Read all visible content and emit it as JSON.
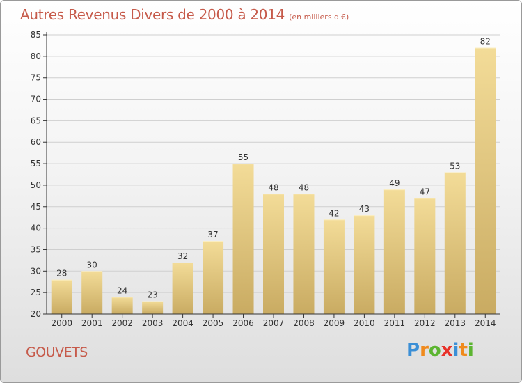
{
  "title": "Autres Revenus Divers de 2000 à 2014",
  "unit": "(en milliers d'€)",
  "place": "GOUVETS",
  "logo": {
    "text": "Proxiti",
    "letters": [
      {
        "ch": "P",
        "color": "#3b8fd6"
      },
      {
        "ch": "r",
        "color": "#f08a1c"
      },
      {
        "ch": "o",
        "color": "#5cb531"
      },
      {
        "ch": "x",
        "color": "#e8322a"
      },
      {
        "ch": "i",
        "color": "#3b8fd6"
      },
      {
        "ch": "t",
        "color": "#f08a1c"
      },
      {
        "ch": "i",
        "color": "#5cb531"
      }
    ]
  },
  "colors": {
    "title": "#c65a4a",
    "bar_top": "#f3dc98",
    "bar_bottom": "#c9ab62",
    "axis": "#333333",
    "grid": "#cfcfcf"
  },
  "chart_data": {
    "type": "bar",
    "categories": [
      "2000",
      "2001",
      "2002",
      "2003",
      "2004",
      "2005",
      "2006",
      "2007",
      "2008",
      "2009",
      "2010",
      "2011",
      "2012",
      "2013",
      "2014"
    ],
    "values": [
      28,
      30,
      24,
      23,
      32,
      37,
      55,
      48,
      48,
      42,
      43,
      49,
      47,
      53,
      82
    ],
    "title": "Autres Revenus Divers de 2000 à 2014",
    "xlabel": "",
    "ylabel": "",
    "ylim": [
      20,
      85
    ],
    "yticks": [
      20,
      25,
      30,
      35,
      40,
      45,
      50,
      55,
      60,
      65,
      70,
      75,
      80,
      85
    ],
    "grid": true,
    "data_labels": true
  }
}
